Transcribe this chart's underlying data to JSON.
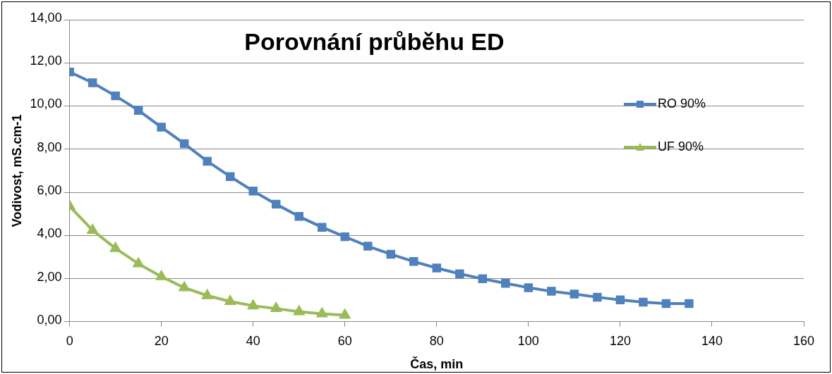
{
  "chart_data": {
    "type": "line",
    "title": "Porovnání průběhu ED",
    "xlabel": "Čas, min",
    "ylabel": "Vodivost, mS.cm-1",
    "series": [
      {
        "name": "RO 90%",
        "color": "#4f81bd",
        "marker": "square",
        "x": [
          0,
          5,
          10,
          15,
          20,
          25,
          30,
          35,
          40,
          45,
          50,
          55,
          60,
          65,
          70,
          75,
          80,
          85,
          90,
          95,
          100,
          105,
          110,
          115,
          120,
          125,
          130,
          135
        ],
        "values": [
          11.58,
          11.08,
          10.47,
          9.8,
          9.02,
          8.25,
          7.44,
          6.73,
          6.06,
          5.45,
          4.88,
          4.38,
          3.94,
          3.5,
          3.13,
          2.79,
          2.49,
          2.22,
          1.99,
          1.78,
          1.58,
          1.41,
          1.28,
          1.14,
          1.01,
          0.91,
          0.84,
          0.84
        ]
      },
      {
        "name": "UF 90%",
        "color": "#9bbb59",
        "marker": "triangle",
        "x": [
          0,
          5,
          10,
          15,
          20,
          25,
          30,
          35,
          40,
          45,
          50,
          55,
          60
        ],
        "values": [
          5.35,
          4.24,
          3.4,
          2.69,
          2.09,
          1.58,
          1.21,
          0.94,
          0.74,
          0.61,
          0.47,
          0.37,
          0.3
        ]
      }
    ],
    "xlim": [
      0,
      160
    ],
    "xticks": [
      0,
      20,
      40,
      60,
      80,
      100,
      120,
      140,
      160
    ],
    "ylim": [
      0,
      14
    ],
    "yticks": [
      {
        "value": 0,
        "label": "0,00"
      },
      {
        "value": 2,
        "label": "2,00"
      },
      {
        "value": 4,
        "label": "4,00"
      },
      {
        "value": 6,
        "label": "6,00"
      },
      {
        "value": 8,
        "label": "8,00"
      },
      {
        "value": 10,
        "label": "10,00"
      },
      {
        "value": 12,
        "label": "12,00"
      },
      {
        "value": 14,
        "label": "14,00"
      }
    ],
    "grid": "y",
    "legend": "right"
  }
}
